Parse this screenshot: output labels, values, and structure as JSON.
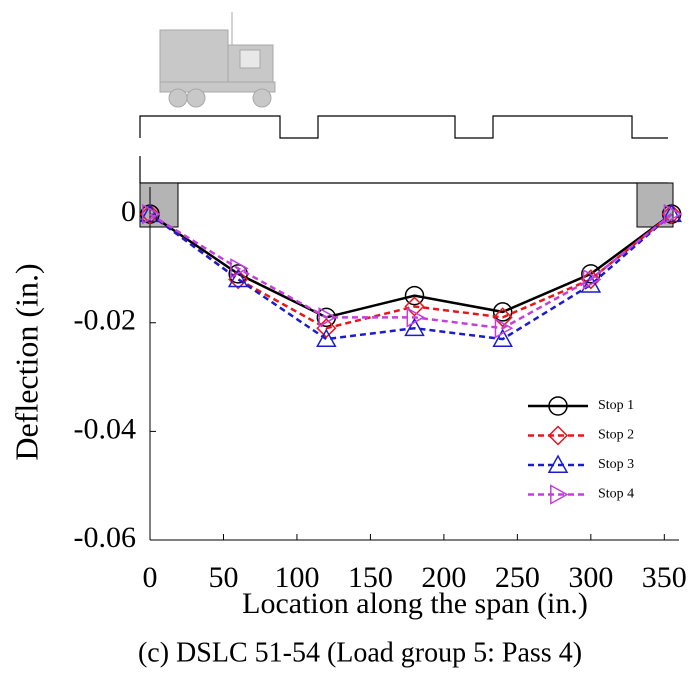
{
  "chart_data": {
    "type": "line",
    "x": [
      0,
      60,
      120,
      180,
      240,
      300,
      355
    ],
    "series": [
      {
        "name": "Stop 1",
        "color": "#000000",
        "marker": "circle",
        "dashed": false,
        "values": [
          0,
          -0.011,
          -0.019,
          -0.015,
          -0.018,
          -0.011,
          0
        ]
      },
      {
        "name": "Stop 2",
        "color": "#e8161b",
        "marker": "diamond",
        "dashed": true,
        "values": [
          0,
          -0.012,
          -0.021,
          -0.017,
          -0.019,
          -0.012,
          0
        ]
      },
      {
        "name": "Stop 3",
        "color": "#1c1ccf",
        "marker": "triangle-up",
        "dashed": true,
        "values": [
          0,
          -0.012,
          -0.023,
          -0.021,
          -0.023,
          -0.013,
          0
        ]
      },
      {
        "name": "Stop 4",
        "color": "#c43fdc",
        "marker": "triangle-right",
        "dashed": true,
        "values": [
          0,
          -0.01,
          -0.019,
          -0.019,
          -0.021,
          -0.012,
          0
        ]
      }
    ],
    "xlabel": "Location along the span (in.)",
    "ylabel": "Deflection (in.)",
    "caption": "(c) DSLC 51-54 (Load group 5: Pass 4)",
    "xlim": [
      0,
      360
    ],
    "xticks": [
      0,
      50,
      100,
      150,
      200,
      250,
      300,
      350
    ],
    "ylim": [
      -0.06,
      0.005
    ],
    "yticks": [
      0,
      -0.02,
      -0.04,
      -0.06
    ],
    "legend": "lower right"
  }
}
